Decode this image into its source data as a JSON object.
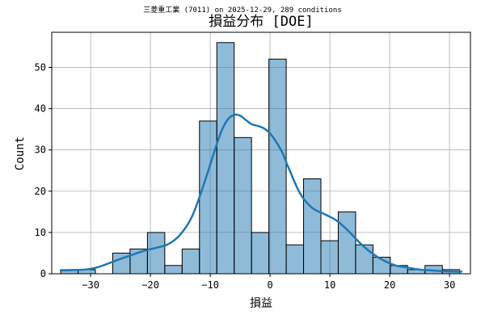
{
  "chart_data": {
    "type": "bar",
    "suptitle": "三菱重工業 (7011) on 2025-12-29, 289 conditions",
    "title": "損益分布 [DOE]",
    "xlabel": "損益",
    "ylabel": "Count",
    "xlim": [
      -36.5,
      33.5
    ],
    "ylim": [
      0,
      58.5
    ],
    "xticks": [
      -30,
      -20,
      -10,
      0,
      10,
      20,
      30
    ],
    "yticks": [
      0,
      10,
      20,
      30,
      40,
      50
    ],
    "grid": true,
    "bar_color": "#1f77b4",
    "kde_color": "#1f77b4",
    "bins": [
      {
        "x0": -35.0,
        "x1": -32.1,
        "count": 1
      },
      {
        "x0": -32.1,
        "x1": -29.2,
        "count": 1
      },
      {
        "x0": -29.2,
        "x1": -26.3,
        "count": 0
      },
      {
        "x0": -26.3,
        "x1": -23.4,
        "count": 5
      },
      {
        "x0": -23.4,
        "x1": -20.5,
        "count": 6
      },
      {
        "x0": -20.5,
        "x1": -17.6,
        "count": 10
      },
      {
        "x0": -17.6,
        "x1": -14.7,
        "count": 2
      },
      {
        "x0": -14.7,
        "x1": -11.8,
        "count": 6
      },
      {
        "x0": -11.8,
        "x1": -8.9,
        "count": 37
      },
      {
        "x0": -8.9,
        "x1": -6.0,
        "count": 56
      },
      {
        "x0": -6.0,
        "x1": -3.1,
        "count": 33
      },
      {
        "x0": -3.1,
        "x1": -0.2,
        "count": 10
      },
      {
        "x0": -0.2,
        "x1": 2.7,
        "count": 52
      },
      {
        "x0": 2.7,
        "x1": 5.6,
        "count": 7
      },
      {
        "x0": 5.6,
        "x1": 8.5,
        "count": 23
      },
      {
        "x0": 8.5,
        "x1": 11.4,
        "count": 8
      },
      {
        "x0": 11.4,
        "x1": 14.3,
        "count": 15
      },
      {
        "x0": 14.3,
        "x1": 17.2,
        "count": 7
      },
      {
        "x0": 17.2,
        "x1": 20.1,
        "count": 4
      },
      {
        "x0": 20.1,
        "x1": 23.0,
        "count": 2
      },
      {
        "x0": 23.0,
        "x1": 25.9,
        "count": 1
      },
      {
        "x0": 25.9,
        "x1": 28.8,
        "count": 2
      },
      {
        "x0": 28.8,
        "x1": 31.7,
        "count": 1
      }
    ],
    "kde": {
      "x": [
        -35,
        -33,
        -31,
        -29,
        -27,
        -25,
        -23,
        -21,
        -19,
        -17,
        -15,
        -13,
        -11,
        -9,
        -8,
        -7,
        -6,
        -5,
        -4,
        -3,
        -2,
        -1,
        0,
        1,
        2,
        3,
        5,
        7,
        9,
        11,
        13,
        15,
        17,
        19,
        21,
        23,
        25,
        27,
        29,
        31,
        32
      ],
      "y": [
        0.8,
        0.9,
        1.0,
        1.5,
        2.5,
        3.6,
        4.6,
        5.6,
        6.3,
        7.2,
        9.5,
        14.0,
        22.0,
        31.0,
        35.0,
        37.5,
        38.5,
        38.3,
        37.2,
        36.2,
        35.8,
        35.2,
        34.0,
        32.0,
        29.5,
        26.0,
        19.5,
        16.0,
        14.5,
        13.0,
        10.5,
        7.5,
        5.0,
        3.2,
        2.0,
        1.5,
        1.0,
        0.8,
        0.6,
        0.5,
        0.5
      ]
    }
  }
}
